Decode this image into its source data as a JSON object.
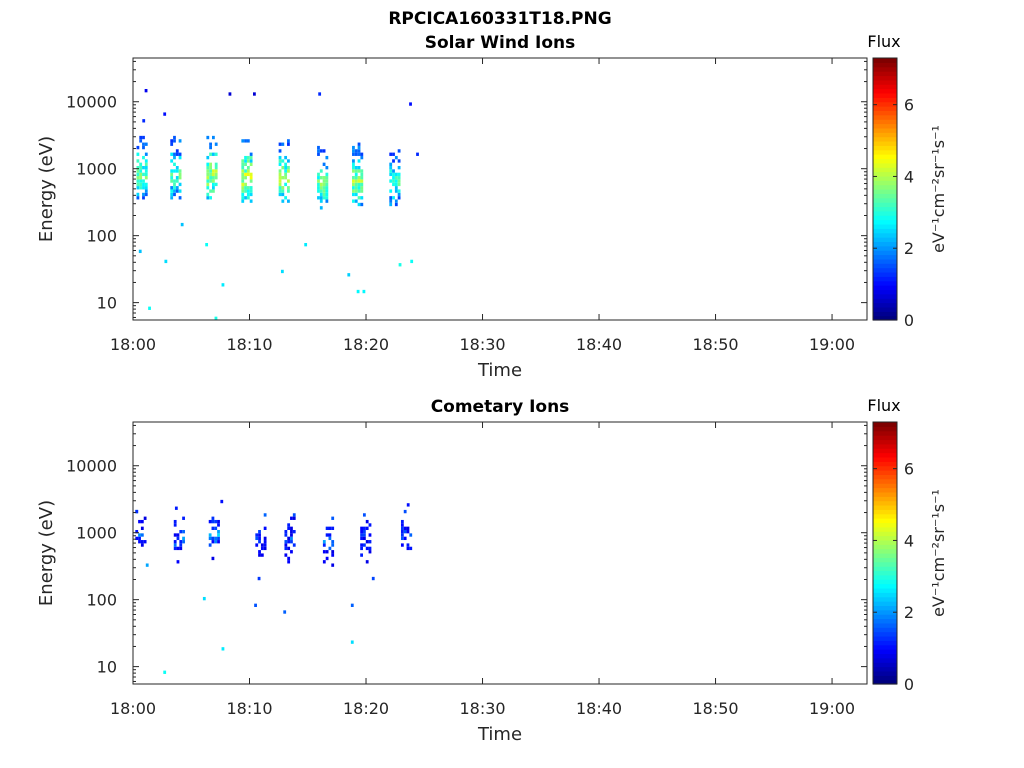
{
  "figure": {
    "title": "RPCICA160331T18.PNG"
  },
  "chart_data": [
    {
      "type": "heatmap",
      "title": "Solar Wind Ions",
      "xlabel": "Time",
      "ylabel": "Energy (eV)",
      "x_ticks": [
        "18:00",
        "18:10",
        "18:20",
        "18:30",
        "18:40",
        "18:50",
        "19:00"
      ],
      "x_range": [
        "18:00",
        "19:03"
      ],
      "y_scale": "log",
      "y_ticks": [
        "10",
        "100",
        "1000",
        "10000"
      ],
      "y_range": [
        5.5,
        45000
      ],
      "colorbar": {
        "title": "Flux",
        "label": "eV⁻¹cm⁻²sr⁻¹s⁻¹",
        "ticks": [
          "0",
          "2",
          "4",
          "6"
        ],
        "range": [
          0,
          7.3
        ]
      },
      "colormap": [
        "#00007f",
        "#0000ff",
        "#0080ff",
        "#00ffff",
        "#80ff80",
        "#ffff00",
        "#ff8000",
        "#ff0000",
        "#7f0000"
      ],
      "grid": false,
      "data_window": [
        "18:00",
        "18:24"
      ],
      "bursts": [
        {
          "t": 0.3,
          "e_peak": 800,
          "intensity": 4.2
        },
        {
          "t": 3.2,
          "e_peak": 800,
          "intensity": 4.0
        },
        {
          "t": 6.3,
          "e_peak": 850,
          "intensity": 4.6
        },
        {
          "t": 9.3,
          "e_peak": 700,
          "intensity": 4.8
        },
        {
          "t": 12.5,
          "e_peak": 750,
          "intensity": 4.5
        },
        {
          "t": 15.8,
          "e_peak": 600,
          "intensity": 4.2
        },
        {
          "t": 18.8,
          "e_peak": 650,
          "intensity": 4.5
        },
        {
          "t": 22.0,
          "e_peak": 650,
          "intensity": 3.8
        }
      ],
      "scatter_points": [
        {
          "t": 1.0,
          "e": 15000,
          "v": 0.8
        },
        {
          "t": 0.8,
          "e": 5200,
          "v": 1.2
        },
        {
          "t": 2.6,
          "e": 6800,
          "v": 1.0
        },
        {
          "t": 8.2,
          "e": 13000,
          "v": 0.6
        },
        {
          "t": 10.3,
          "e": 12500,
          "v": 0.6
        },
        {
          "t": 15.9,
          "e": 12500,
          "v": 1.2
        },
        {
          "t": 23.7,
          "e": 9000,
          "v": 1.0
        },
        {
          "t": 24.3,
          "e": 1700,
          "v": 1.2
        },
        {
          "t": 0.5,
          "e": 55,
          "v": 2.3
        },
        {
          "t": 1.3,
          "e": 8,
          "v": 2.8
        },
        {
          "t": 2.7,
          "e": 40,
          "v": 2.5
        },
        {
          "t": 4.1,
          "e": 140,
          "v": 2.3
        },
        {
          "t": 6.2,
          "e": 75,
          "v": 2.8
        },
        {
          "t": 7.6,
          "e": 19,
          "v": 2.6
        },
        {
          "t": 7.0,
          "e": 6,
          "v": 2.9
        },
        {
          "t": 12.7,
          "e": 30,
          "v": 2.5
        },
        {
          "t": 14.7,
          "e": 70,
          "v": 2.6
        },
        {
          "t": 18.4,
          "e": 25,
          "v": 2.4
        },
        {
          "t": 19.2,
          "e": 14,
          "v": 2.7
        },
        {
          "t": 19.7,
          "e": 14,
          "v": 2.7
        },
        {
          "t": 22.8,
          "e": 36,
          "v": 2.9
        },
        {
          "t": 23.8,
          "e": 40,
          "v": 2.8
        }
      ]
    },
    {
      "type": "heatmap",
      "title": "Cometary Ions",
      "xlabel": "Time",
      "ylabel": "Energy (eV)",
      "x_ticks": [
        "18:00",
        "18:10",
        "18:20",
        "18:30",
        "18:40",
        "18:50",
        "19:00"
      ],
      "x_range": [
        "18:00",
        "19:03"
      ],
      "y_scale": "log",
      "y_ticks": [
        "10",
        "100",
        "1000",
        "10000"
      ],
      "y_range": [
        5.5,
        45000
      ],
      "colorbar": {
        "title": "Flux",
        "label": "eV⁻¹cm⁻²sr⁻¹s⁻¹",
        "ticks": [
          "0",
          "2",
          "4",
          "6"
        ],
        "range": [
          0,
          7.3
        ]
      },
      "colormap": [
        "#00007f",
        "#0000ff",
        "#0080ff",
        "#00ffff",
        "#80ff80",
        "#ffff00",
        "#ff8000",
        "#ff0000",
        "#7f0000"
      ],
      "grid": false,
      "data_window": [
        "18:00",
        "18:24"
      ],
      "bursts": [
        {
          "t": 0.2,
          "e_peak": 900,
          "intensity": 2.0
        },
        {
          "t": 3.5,
          "e_peak": 850,
          "intensity": 2.2
        },
        {
          "t": 6.5,
          "e_peak": 900,
          "intensity": 2.6
        },
        {
          "t": 10.5,
          "e_peak": 800,
          "intensity": 2.0
        },
        {
          "t": 13.0,
          "e_peak": 850,
          "intensity": 1.9
        },
        {
          "t": 16.3,
          "e_peak": 750,
          "intensity": 2.1
        },
        {
          "t": 19.5,
          "e_peak": 850,
          "intensity": 1.8
        },
        {
          "t": 23.0,
          "e_peak": 900,
          "intensity": 2.0
        }
      ],
      "scatter_points": [
        {
          "t": 0.2,
          "e": 2100,
          "v": 1.2
        },
        {
          "t": 3.6,
          "e": 2400,
          "v": 1.1
        },
        {
          "t": 7.5,
          "e": 2800,
          "v": 1.0
        },
        {
          "t": 23.5,
          "e": 2700,
          "v": 1.0
        },
        {
          "t": 1.1,
          "e": 320,
          "v": 2.1
        },
        {
          "t": 6.0,
          "e": 100,
          "v": 2.5
        },
        {
          "t": 10.7,
          "e": 210,
          "v": 1.3
        },
        {
          "t": 10.4,
          "e": 85,
          "v": 1.5
        },
        {
          "t": 12.9,
          "e": 63,
          "v": 1.6
        },
        {
          "t": 18.7,
          "e": 85,
          "v": 1.6
        },
        {
          "t": 18.7,
          "e": 24,
          "v": 2.5
        },
        {
          "t": 7.6,
          "e": 19,
          "v": 2.6
        },
        {
          "t": 2.6,
          "e": 8,
          "v": 2.8
        },
        {
          "t": 20.5,
          "e": 210,
          "v": 1.4
        }
      ]
    }
  ]
}
